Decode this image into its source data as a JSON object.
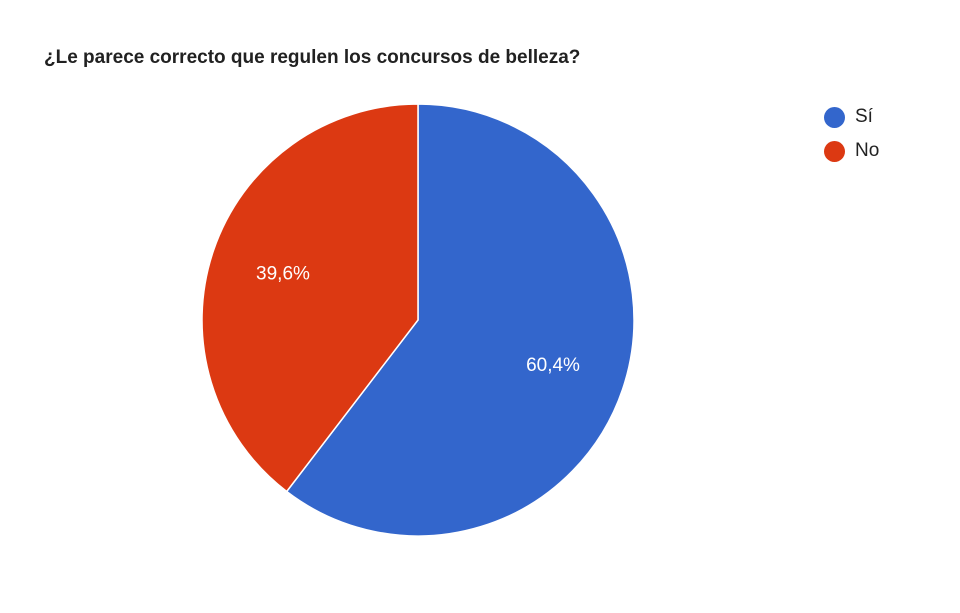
{
  "chart_data": {
    "type": "pie",
    "title": "¿Le parece correcto que regulen los concursos de belleza?",
    "slices": [
      {
        "label": "Sí",
        "value": 60.4,
        "value_label": "60,4%",
        "color": "#3366cc"
      },
      {
        "label": "No",
        "value": 39.6,
        "value_label": "39,6%",
        "color": "#dc3912"
      }
    ],
    "legend_position": "right"
  }
}
